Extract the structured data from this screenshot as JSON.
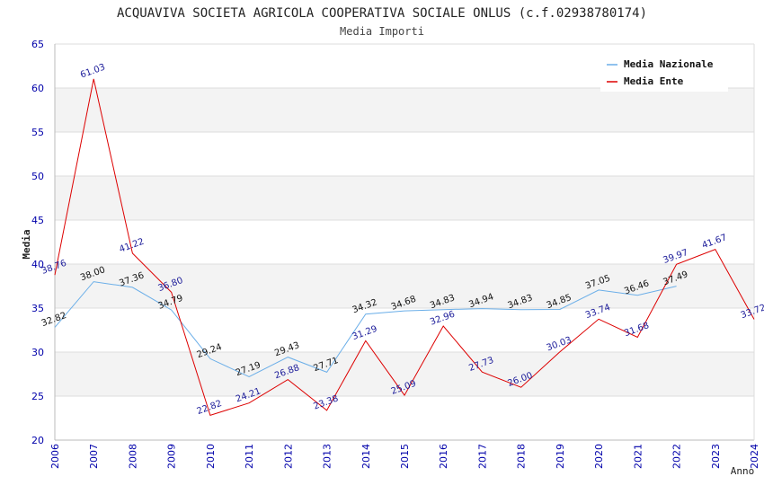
{
  "chart_data": {
    "type": "line",
    "title": "ACQUAVIVA SOCIETA AGRICOLA COOPERATIVA SOCIALE ONLUS (c.f.02938780174)",
    "subtitle": "Media Importi",
    "xlabel": "Anno",
    "ylabel": "Media",
    "ylim": [
      20,
      65
    ],
    "yticks": [
      20,
      25,
      30,
      35,
      40,
      45,
      50,
      55,
      60,
      65
    ],
    "x": [
      2006,
      2007,
      2008,
      2009,
      2010,
      2011,
      2012,
      2013,
      2014,
      2015,
      2016,
      2017,
      2018,
      2019,
      2020,
      2021,
      2022,
      2023,
      2024
    ],
    "grid": true,
    "legend_position": "top-right",
    "series": [
      {
        "name": "Media Nazionale",
        "color": "#6aaee8",
        "label_color": "#111111",
        "x": [
          2006,
          2007,
          2008,
          2009,
          2010,
          2011,
          2012,
          2013,
          2014,
          2015,
          2016,
          2017,
          2018,
          2019,
          2020,
          2021,
          2022
        ],
        "values": [
          32.82,
          38.0,
          37.36,
          34.79,
          29.24,
          27.19,
          29.43,
          27.71,
          34.32,
          34.68,
          34.83,
          34.94,
          34.83,
          34.85,
          37.05,
          36.46,
          37.49
        ],
        "labels": [
          "32.82",
          "38.00",
          "37.36",
          "34.79",
          "29.24",
          "27.19",
          "29.43",
          "27.71",
          "34.32",
          "34.68",
          "34.83",
          "34.94",
          "34.83",
          "34.85",
          "37.05",
          "36.46",
          "37.49"
        ]
      },
      {
        "name": "Media Ente",
        "color": "#dd0000",
        "label_color": "#1a1a99",
        "x": [
          2006,
          2007,
          2008,
          2009,
          2010,
          2011,
          2012,
          2013,
          2014,
          2015,
          2016,
          2017,
          2018,
          2019,
          2020,
          2021,
          2022,
          2023,
          2024
        ],
        "values": [
          38.76,
          61.03,
          41.22,
          36.8,
          22.82,
          24.21,
          26.88,
          23.38,
          31.29,
          25.09,
          32.96,
          27.73,
          26.0,
          30.03,
          33.74,
          31.68,
          39.97,
          41.67,
          33.72
        ],
        "labels": [
          "38.76",
          "61.03",
          "41.22",
          "36.80",
          "22.82",
          "24.21",
          "26.88",
          "23.38",
          "31.29",
          "25.09",
          "32.96",
          "27.73",
          "26.00",
          "30.03",
          "33.74",
          "31.68",
          "39.97",
          "41.67",
          "33.72"
        ]
      }
    ]
  }
}
